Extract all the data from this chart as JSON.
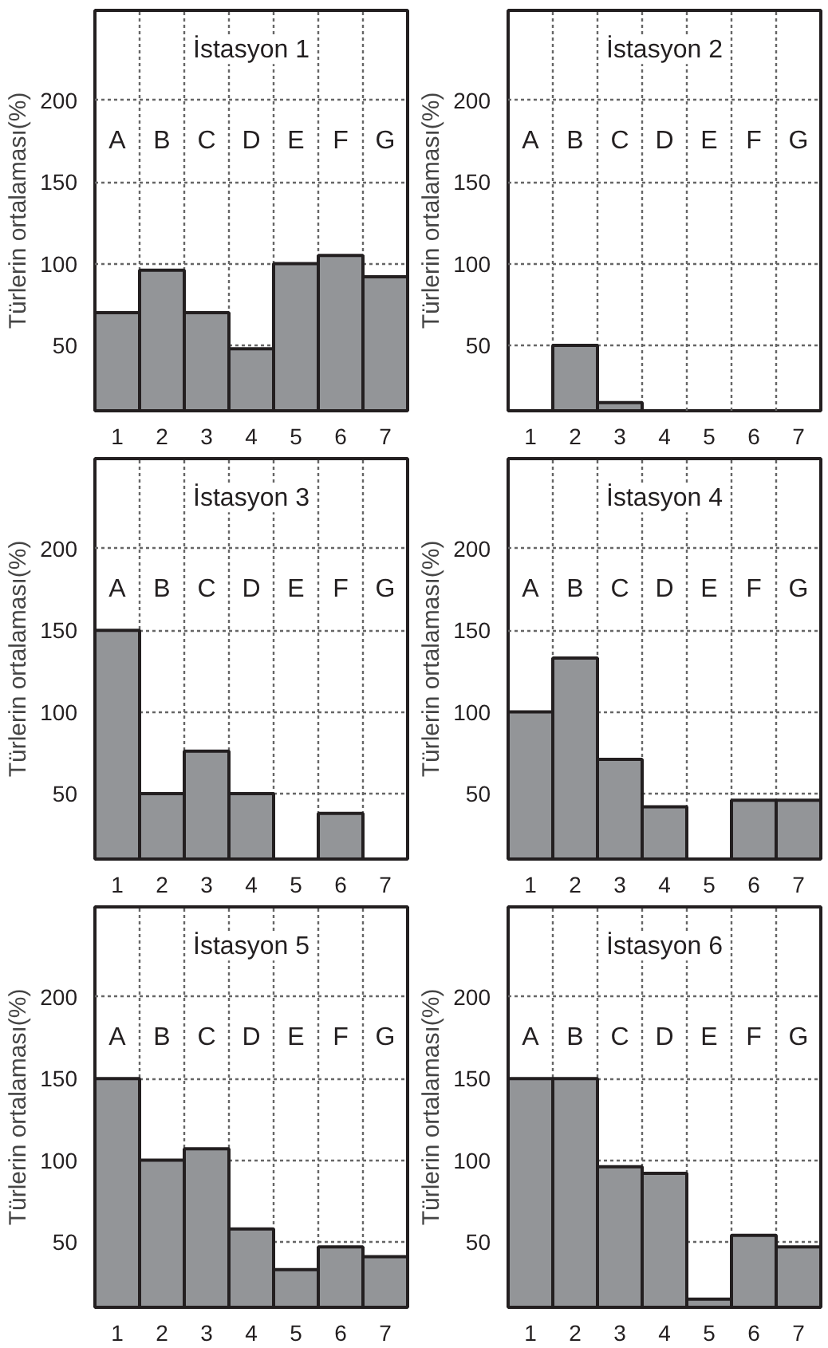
{
  "chart_data": [
    {
      "type": "bar",
      "title": "İstasyon 1",
      "ylabel": "Türlerin ortalaması(%)",
      "categories": [
        "1",
        "2",
        "3",
        "4",
        "5",
        "6",
        "7"
      ],
      "values": [
        70,
        96,
        70,
        48,
        100,
        105,
        92
      ],
      "color": "#939598",
      "ylim": [
        10,
        255
      ],
      "yticks": [
        50,
        100,
        150,
        200
      ],
      "grid": true,
      "annotations": [
        {
          "text": "A",
          "x": "1",
          "y": 175
        },
        {
          "text": "B",
          "x": "2",
          "y": 175
        },
        {
          "text": "C",
          "x": "3",
          "y": 175
        },
        {
          "text": "D",
          "x": "4",
          "y": 175
        },
        {
          "text": "E",
          "x": "5",
          "y": 175
        },
        {
          "text": "F",
          "x": "6",
          "y": 175
        },
        {
          "text": "G",
          "x": "7",
          "y": 175
        }
      ]
    },
    {
      "type": "bar",
      "title": "İstasyon 2",
      "ylabel": "Türlerin ortalaması(%)",
      "categories": [
        "1",
        "2",
        "3",
        "4",
        "5",
        "6",
        "7"
      ],
      "values": [
        null,
        50,
        15,
        null,
        null,
        null,
        null
      ],
      "color": "#939598",
      "ylim": [
        10,
        255
      ],
      "yticks": [
        50,
        100,
        150,
        200
      ],
      "grid": true,
      "annotations": [
        {
          "text": "A",
          "x": "1",
          "y": 175
        },
        {
          "text": "B",
          "x": "2",
          "y": 175
        },
        {
          "text": "C",
          "x": "3",
          "y": 175
        },
        {
          "text": "D",
          "x": "4",
          "y": 175
        },
        {
          "text": "E",
          "x": "5",
          "y": 175
        },
        {
          "text": "F",
          "x": "6",
          "y": 175
        },
        {
          "text": "G",
          "x": "7",
          "y": 175
        }
      ]
    },
    {
      "type": "bar",
      "title": "İstasyon 3",
      "ylabel": "Türlerin ortalaması(%)",
      "categories": [
        "1",
        "2",
        "3",
        "4",
        "5",
        "6",
        "7"
      ],
      "values": [
        150,
        50,
        76,
        50,
        null,
        38,
        null
      ],
      "color": "#939598",
      "ylim": [
        10,
        255
      ],
      "yticks": [
        50,
        100,
        150,
        200
      ],
      "grid": true,
      "annotations": [
        {
          "text": "A",
          "x": "1",
          "y": 175
        },
        {
          "text": "B",
          "x": "2",
          "y": 175
        },
        {
          "text": "C",
          "x": "3",
          "y": 175
        },
        {
          "text": "D",
          "x": "4",
          "y": 175
        },
        {
          "text": "E",
          "x": "5",
          "y": 175
        },
        {
          "text": "F",
          "x": "6",
          "y": 175
        },
        {
          "text": "G",
          "x": "7",
          "y": 175
        }
      ]
    },
    {
      "type": "bar",
      "title": "İstasyon 4",
      "ylabel": "Türlerin ortalaması(%)",
      "categories": [
        "1",
        "2",
        "3",
        "4",
        "5",
        "6",
        "7"
      ],
      "values": [
        100,
        133,
        71,
        42,
        null,
        46,
        46
      ],
      "color": "#939598",
      "ylim": [
        10,
        255
      ],
      "yticks": [
        50,
        100,
        150,
        200
      ],
      "grid": true,
      "annotations": [
        {
          "text": "A",
          "x": "1",
          "y": 175
        },
        {
          "text": "B",
          "x": "2",
          "y": 175
        },
        {
          "text": "C",
          "x": "3",
          "y": 175
        },
        {
          "text": "D",
          "x": "4",
          "y": 175
        },
        {
          "text": "E",
          "x": "5",
          "y": 175
        },
        {
          "text": "F",
          "x": "6",
          "y": 175
        },
        {
          "text": "G",
          "x": "7",
          "y": 175
        }
      ]
    },
    {
      "type": "bar",
      "title": "İstasyon 5",
      "ylabel": "Türlerin ortalaması(%)",
      "categories": [
        "1",
        "2",
        "3",
        "4",
        "5",
        "6",
        "7"
      ],
      "values": [
        150,
        100,
        107,
        58,
        33,
        47,
        41
      ],
      "color": "#939598",
      "ylim": [
        10,
        255
      ],
      "yticks": [
        50,
        100,
        150,
        200
      ],
      "grid": true,
      "annotations": [
        {
          "text": "A",
          "x": "1",
          "y": 175
        },
        {
          "text": "B",
          "x": "2",
          "y": 175
        },
        {
          "text": "C",
          "x": "3",
          "y": 175
        },
        {
          "text": "D",
          "x": "4",
          "y": 175
        },
        {
          "text": "E",
          "x": "5",
          "y": 175
        },
        {
          "text": "F",
          "x": "6",
          "y": 175
        },
        {
          "text": "G",
          "x": "7",
          "y": 175
        }
      ]
    },
    {
      "type": "bar",
      "title": "İstasyon 6",
      "ylabel": "Türlerin ortalaması(%)",
      "categories": [
        "1",
        "2",
        "3",
        "4",
        "5",
        "6",
        "7"
      ],
      "values": [
        150,
        150,
        96,
        92,
        15,
        54,
        47
      ],
      "color": "#939598",
      "ylim": [
        10,
        255
      ],
      "yticks": [
        50,
        100,
        150,
        200
      ],
      "grid": true,
      "annotations": [
        {
          "text": "A",
          "x": "1",
          "y": 175
        },
        {
          "text": "B",
          "x": "2",
          "y": 175
        },
        {
          "text": "C",
          "x": "3",
          "y": 175
        },
        {
          "text": "D",
          "x": "4",
          "y": 175
        },
        {
          "text": "E",
          "x": "5",
          "y": 175
        },
        {
          "text": "F",
          "x": "6",
          "y": 175
        },
        {
          "text": "G",
          "x": "7",
          "y": 175
        }
      ]
    }
  ]
}
